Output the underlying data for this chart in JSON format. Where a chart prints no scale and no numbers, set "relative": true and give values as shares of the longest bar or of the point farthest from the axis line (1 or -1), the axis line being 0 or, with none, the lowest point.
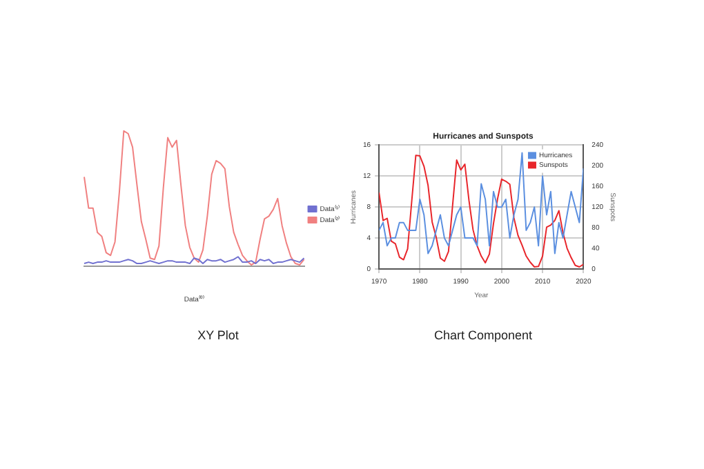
{
  "chart_data": [
    {
      "type": "line",
      "relative": true,
      "xlabel": "Data⁽⁰⁾",
      "legend": "right",
      "annotations": [
        "XY Plot"
      ],
      "categories": [
        null,
        null,
        null,
        null,
        null,
        null,
        null,
        null,
        null,
        null,
        null,
        null,
        null,
        null,
        null,
        null,
        null,
        null,
        null,
        null,
        null,
        null,
        null,
        null,
        null,
        null,
        null,
        null,
        null,
        null,
        null,
        null,
        null,
        null,
        null,
        null,
        null,
        null,
        null,
        null,
        null,
        null,
        null,
        null,
        null,
        null,
        null,
        null,
        null,
        null,
        null
      ],
      "series": [
        {
          "name": "Data⁽¹⁾",
          "color": "#7070d0",
          "values": [
            0.02,
            0.03,
            0.02,
            0.03,
            0.03,
            0.04,
            0.03,
            0.03,
            0.03,
            0.04,
            0.05,
            0.04,
            0.02,
            0.02,
            0.03,
            0.04,
            0.03,
            0.02,
            0.03,
            0.04,
            0.04,
            0.03,
            0.03,
            0.03,
            0.02,
            0.06,
            0.05,
            0.02,
            0.05,
            0.04,
            0.04,
            0.05,
            0.03,
            0.04,
            0.05,
            0.07,
            0.03,
            0.03,
            0.04,
            0.02,
            0.05,
            0.04,
            0.05,
            0.02,
            0.03,
            0.03,
            0.04,
            0.05,
            0.04,
            0.03,
            0.06
          ]
        },
        {
          "name": "Data⁽²⁾",
          "color": "#f08080",
          "values": [
            0.66,
            0.43,
            0.43,
            0.25,
            0.22,
            0.1,
            0.08,
            0.18,
            0.55,
            1.0,
            0.98,
            0.88,
            0.6,
            0.33,
            0.2,
            0.06,
            0.05,
            0.15,
            0.58,
            0.95,
            0.88,
            0.93,
            0.6,
            0.3,
            0.14,
            0.06,
            0.03,
            0.12,
            0.37,
            0.68,
            0.78,
            0.76,
            0.72,
            0.44,
            0.25,
            0.16,
            0.08,
            0.04,
            0.01,
            0.03,
            0.2,
            0.35,
            0.37,
            0.42,
            0.5,
            0.3,
            0.17,
            0.07,
            0.02,
            0.01,
            0.05
          ]
        }
      ]
    },
    {
      "type": "line",
      "title": "Hurricanes and Sunspots",
      "xlabel": "Year",
      "ylabel": "Hurricanes",
      "y2label": "Sunspots",
      "legend": "top right",
      "grid": true,
      "line_style": "solid",
      "annotations": [
        "Chart Component"
      ],
      "x": [
        1970,
        1971,
        1972,
        1973,
        1974,
        1975,
        1976,
        1977,
        1978,
        1979,
        1980,
        1981,
        1982,
        1983,
        1984,
        1985,
        1986,
        1987,
        1988,
        1989,
        1990,
        1991,
        1992,
        1993,
        1994,
        1995,
        1996,
        1997,
        1998,
        1999,
        2000,
        2001,
        2002,
        2003,
        2004,
        2005,
        2006,
        2007,
        2008,
        2009,
        2010,
        2011,
        2012,
        2013,
        2014,
        2015,
        2016,
        2017,
        2018,
        2019,
        2020
      ],
      "xlim": [
        1970,
        2020
      ],
      "xticks": [
        1970,
        1980,
        1990,
        2000,
        2010,
        2020
      ],
      "ylim": [
        0,
        16
      ],
      "yticks": [
        0,
        4,
        8,
        12,
        16
      ],
      "y2lim": [
        0,
        240
      ],
      "y2ticks": [
        0,
        40,
        80,
        120,
        160,
        200,
        240
      ],
      "series": [
        {
          "name": "Hurricanes",
          "color": "#5b8fe0",
          "values": [
            5,
            6,
            3,
            4,
            4,
            6,
            6,
            5,
            5,
            5,
            9,
            7,
            2,
            3,
            5,
            7,
            4,
            3,
            5,
            7,
            8,
            4,
            4,
            4,
            3,
            11,
            9,
            3,
            10,
            8,
            8,
            9,
            4,
            7,
            9,
            15,
            5,
            6,
            8,
            3,
            12,
            7,
            10,
            2,
            6,
            4,
            7,
            10,
            8,
            6,
            13
          ]
        },
        {
          "name": "Sunspots",
          "color": "#e8262b",
          "axis": "y2",
          "values": [
            148,
            94,
            98,
            54,
            49,
            23,
            18,
            39,
            131,
            220,
            219,
            199,
            162,
            91,
            61,
            21,
            15,
            34,
            123,
            211,
            192,
            203,
            133,
            76,
            45,
            25,
            12,
            29,
            88,
            136,
            174,
            170,
            164,
            99,
            65,
            46,
            25,
            13,
            4,
            5,
            25,
            81,
            85,
            94,
            113,
            70,
            40,
            22,
            7,
            4,
            9
          ]
        }
      ]
    }
  ]
}
